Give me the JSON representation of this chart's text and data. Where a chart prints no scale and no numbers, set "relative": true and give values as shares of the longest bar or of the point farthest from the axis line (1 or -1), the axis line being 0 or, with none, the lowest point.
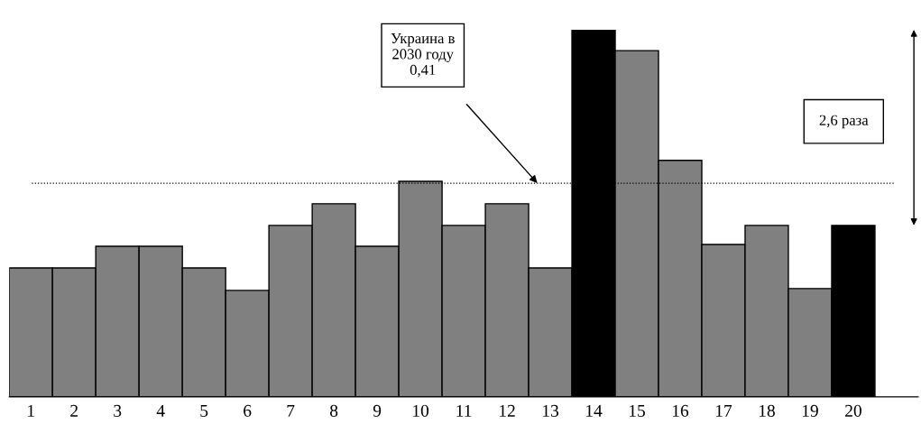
{
  "chart_data": {
    "type": "bar",
    "relative": true,
    "categories": [
      "1",
      "2",
      "3",
      "4",
      "5",
      "6",
      "7",
      "8",
      "9",
      "10",
      "11",
      "12",
      "13",
      "14",
      "15",
      "16",
      "17",
      "18",
      "19",
      "20"
    ],
    "values": [
      0.351,
      0.351,
      0.41,
      0.41,
      0.351,
      0.29,
      0.467,
      0.526,
      0.41,
      0.587,
      0.467,
      0.526,
      0.351,
      1,
      0.943,
      0.644,
      0.415,
      0.467,
      0.295,
      0.467
    ],
    "colors": [
      "#808080",
      "#808080",
      "#808080",
      "#808080",
      "#808080",
      "#808080",
      "#808080",
      "#808080",
      "#808080",
      "#808080",
      "#808080",
      "#808080",
      "#808080",
      "#000000",
      "#808080",
      "#808080",
      "#808080",
      "#808080",
      "#808080",
      "#000000"
    ],
    "ref_lines": [
      {
        "axis": "y",
        "value": 0.582,
        "color": "#000000",
        "line_style": "dotted"
      }
    ],
    "annotations": [
      "Украина в\n2030 году\n0,41",
      "2,6 раза"
    ],
    "grid": false,
    "legend": false
  }
}
